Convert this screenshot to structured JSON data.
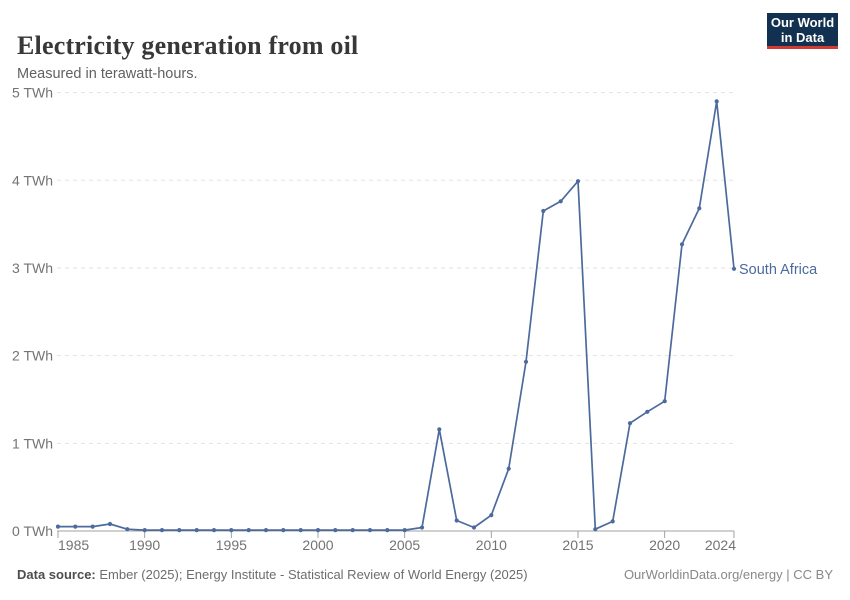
{
  "header": {
    "title": "Electricity generation from oil",
    "subtitle": "Measured in terawatt-hours.",
    "logo": {
      "line1": "Our World",
      "line2": "in Data"
    }
  },
  "footer": {
    "source_label": "Data source:",
    "source_text": " Ember (2025); Energy Institute - Statistical Review of World Energy (2025)",
    "credit": "OurWorldinData.org/energy | CC BY"
  },
  "colors": {
    "line": "#4c6a9d",
    "grid": "#e2e2e2",
    "axis": "#a1a1a1",
    "tick_label": "#737373",
    "logo_bg": "#12304f",
    "logo_red": "#d13b32"
  },
  "chart_data": {
    "type": "line",
    "title": "Electricity generation from oil",
    "ylabel": "",
    "xlabel": "",
    "unit": "TWh",
    "grid": "horizontal-dashed",
    "legend_position": "end-of-line-label",
    "xlim": [
      1985,
      2024
    ],
    "ylim": [
      0,
      5
    ],
    "xticks": [
      1985,
      1990,
      1995,
      2000,
      2005,
      2010,
      2015,
      2020,
      2024
    ],
    "yticks": [
      0,
      1,
      2,
      3,
      4,
      5
    ],
    "ytick_suffix": " TWh",
    "x": [
      1985,
      1986,
      1987,
      1988,
      1989,
      1990,
      1991,
      1992,
      1993,
      1994,
      1995,
      1996,
      1997,
      1998,
      1999,
      2000,
      2001,
      2002,
      2003,
      2004,
      2005,
      2006,
      2007,
      2008,
      2009,
      2010,
      2011,
      2012,
      2013,
      2014,
      2015,
      2016,
      2017,
      2018,
      2019,
      2020,
      2021,
      2022,
      2023,
      2024
    ],
    "series": [
      {
        "name": "South Africa",
        "color": "#4c6a9d",
        "values": [
          0.05,
          0.05,
          0.05,
          0.08,
          0.02,
          0.01,
          0.01,
          0.01,
          0.01,
          0.01,
          0.01,
          0.01,
          0.01,
          0.01,
          0.01,
          0.01,
          0.01,
          0.01,
          0.01,
          0.01,
          0.01,
          0.04,
          1.16,
          0.12,
          0.04,
          0.18,
          0.71,
          1.93,
          3.65,
          3.76,
          3.99,
          0.02,
          0.11,
          1.23,
          1.36,
          1.48,
          3.27,
          3.68,
          4.9,
          2.99
        ]
      }
    ]
  }
}
